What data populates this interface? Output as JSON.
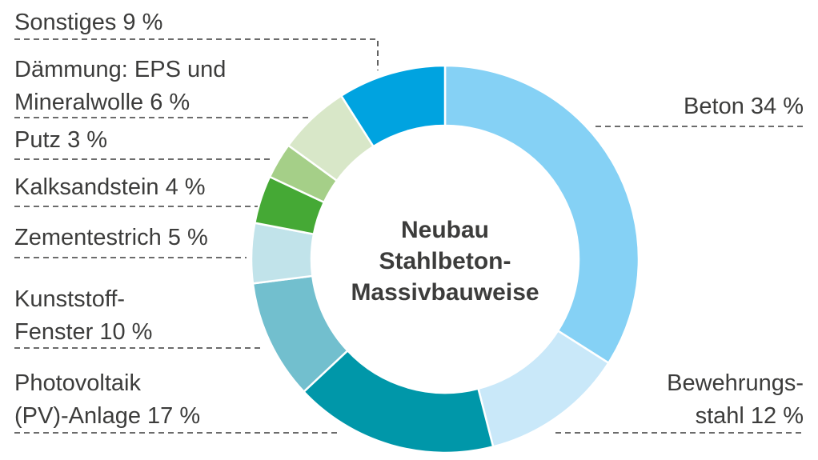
{
  "chart_data": {
    "type": "pie",
    "variant": "donut",
    "title_lines": [
      "Neubau",
      "Stahlbeton-",
      "Massivbauweise"
    ],
    "slices": [
      {
        "key": "beton",
        "label_lines": [
          "Beton 34 %"
        ],
        "value": 34,
        "color": "#85d1f5"
      },
      {
        "key": "stahl",
        "label_lines": [
          "Bewehrungs-",
          "stahl 12 %"
        ],
        "value": 12,
        "color": "#c9e8f9"
      },
      {
        "key": "pv",
        "label_lines": [
          "Photovoltaik",
          "(PV)-Anlage 17 %"
        ],
        "value": 17,
        "color": "#0097a9"
      },
      {
        "key": "fenster",
        "label_lines": [
          "Kunststoff-",
          "Fenster 10 %"
        ],
        "value": 10,
        "color": "#72bfce"
      },
      {
        "key": "estrich",
        "label_lines": [
          "Zementestrich 5 %"
        ],
        "value": 5,
        "color": "#c1e3ea"
      },
      {
        "key": "kalk",
        "label_lines": [
          "Kalksandstein 4 %"
        ],
        "value": 4,
        "color": "#45a935"
      },
      {
        "key": "putz",
        "label_lines": [
          "Putz 3 %"
        ],
        "value": 3,
        "color": "#a5cf88"
      },
      {
        "key": "daemm",
        "label_lines": [
          "Dämmung: EPS und",
          "Mineralwolle 6 %"
        ],
        "value": 6,
        "color": "#d8e7c8"
      },
      {
        "key": "sonst",
        "label_lines": [
          "Sonstiges 9 %"
        ],
        "value": 9,
        "color": "#00a3e0"
      }
    ]
  }
}
